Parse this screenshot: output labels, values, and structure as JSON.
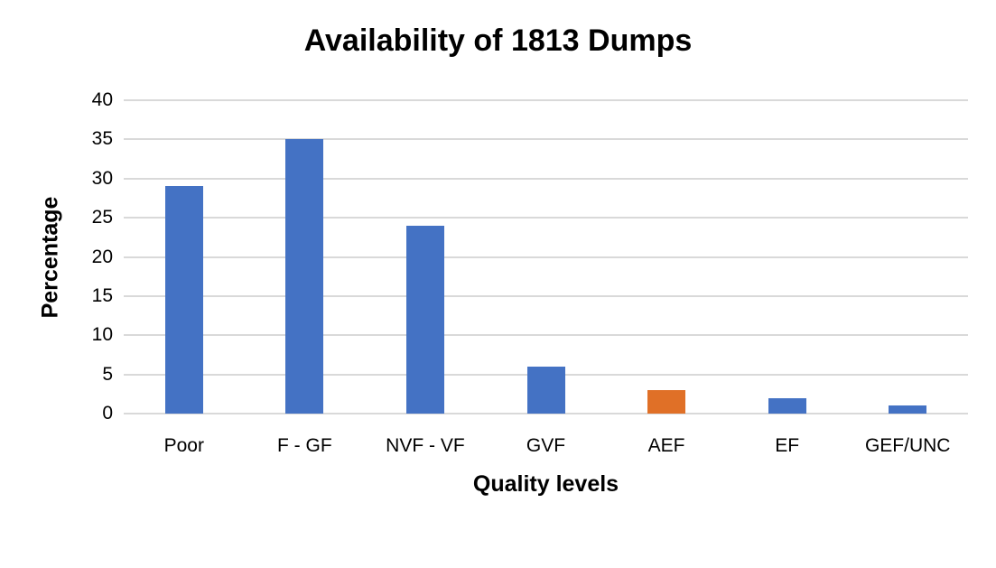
{
  "chart_data": {
    "type": "bar",
    "title": "Availability of 1813 Dumps",
    "xlabel": "Quality levels",
    "ylabel": "Percentage",
    "categories": [
      "Poor",
      "F - GF",
      "NVF - VF",
      "GVF",
      "AEF",
      "EF",
      "GEF/UNC"
    ],
    "values": [
      29,
      35,
      24,
      6,
      3,
      2,
      1
    ],
    "bar_colors": [
      "#4472C4",
      "#4472C4",
      "#4472C4",
      "#4472C4",
      "#E07027",
      "#4472C4",
      "#4472C4"
    ],
    "ylim": [
      0,
      40
    ],
    "yticks": [
      "0",
      "5",
      "10",
      "15",
      "20",
      "25",
      "30",
      "35",
      "40"
    ],
    "grid": true,
    "legend": null
  }
}
